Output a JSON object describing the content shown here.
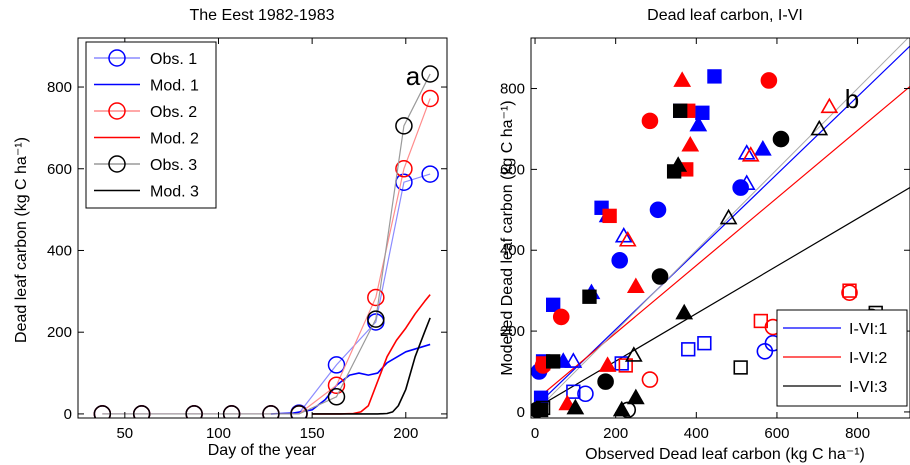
{
  "chart_data": [
    {
      "type": "line",
      "panel_letter": "a",
      "title": "The Eest 1982-1983",
      "xlabel": "Day of the year",
      "ylabel": "Dead leaf carbon (kg C ha⁻¹)",
      "xlim": [
        25,
        222
      ],
      "ylim": [
        -10,
        920
      ],
      "xticks": [
        50,
        100,
        150,
        200
      ],
      "yticks": [
        0,
        200,
        400,
        600,
        800
      ],
      "legend_position": "top-left",
      "series": [
        {
          "name": "Obs. 1",
          "kind": "obs",
          "color": "#0000ff",
          "x": [
            38,
            59,
            87,
            107,
            128,
            143,
            163,
            184,
            199,
            213
          ],
          "y": [
            0,
            0,
            0,
            0,
            0,
            2,
            120,
            225,
            567,
            587
          ]
        },
        {
          "name": "Mod. 1",
          "kind": "model",
          "color": "#0000ff",
          "x": [
            128,
            140,
            150,
            157,
            163,
            170,
            175,
            180,
            185,
            190,
            200,
            213
          ],
          "y": [
            0,
            2,
            10,
            35,
            70,
            95,
            100,
            95,
            100,
            125,
            152,
            170
          ]
        },
        {
          "name": "Obs. 2",
          "kind": "obs",
          "color": "#ff0000",
          "x": [
            38,
            59,
            87,
            107,
            128,
            143,
            163,
            184,
            199,
            213
          ],
          "y": [
            0,
            0,
            0,
            0,
            0,
            0,
            70,
            285,
            600,
            772
          ]
        },
        {
          "name": "Mod. 2",
          "kind": "model",
          "color": "#ff0000",
          "x": [
            150,
            165,
            172,
            176,
            180,
            185,
            190,
            195,
            200,
            205,
            210,
            213
          ],
          "y": [
            0,
            0,
            1,
            5,
            20,
            80,
            140,
            180,
            210,
            245,
            275,
            292
          ]
        },
        {
          "name": "Obs. 3",
          "kind": "obs",
          "color": "#000000",
          "x": [
            38,
            59,
            87,
            107,
            128,
            143,
            163,
            184,
            199,
            213
          ],
          "y": [
            0,
            0,
            0,
            0,
            0,
            0,
            42,
            232,
            705,
            832
          ]
        },
        {
          "name": "Mod. 3",
          "kind": "model",
          "color": "#000000",
          "x": [
            150,
            185,
            190,
            193,
            196,
            200,
            205,
            210,
            213
          ],
          "y": [
            0,
            0,
            1,
            5,
            20,
            60,
            140,
            200,
            235
          ]
        }
      ]
    },
    {
      "type": "scatter",
      "panel_letter": "b",
      "title": "Dead leaf carbon, I-VI",
      "xlabel": "Observed Dead leaf carbon (kg C ha⁻¹)",
      "ylabel": "Modelled Dead leaf carbon (kg C ha⁻¹)",
      "xlim": [
        -10,
        930
      ],
      "ylim": [
        -15,
        925
      ],
      "xticks": [
        0,
        200,
        400,
        600,
        800
      ],
      "yticks": [
        0,
        200,
        400,
        600,
        800
      ],
      "legend_position": "bottom-right",
      "regression_lines": [
        {
          "name": "I-VI:1",
          "color": "#0000ff",
          "x": [
            0,
            930
          ],
          "y": [
            12,
            905
          ]
        },
        {
          "name": "I-VI:2",
          "color": "#ff0000",
          "x": [
            0,
            930
          ],
          "y": [
            28,
            805
          ]
        },
        {
          "name": "I-VI:3",
          "color": "#000000",
          "x": [
            0,
            930
          ],
          "y": [
            8,
            555
          ]
        },
        {
          "name": "",
          "color": "#aaaaaa",
          "x": [
            0,
            930
          ],
          "y": [
            0,
            930
          ]
        }
      ],
      "points": [
        {
          "color": "#0000ff",
          "marker": "square",
          "filled": true,
          "x": 445,
          "y": 830
        },
        {
          "color": "#0000ff",
          "marker": "square",
          "filled": true,
          "x": 415,
          "y": 740
        },
        {
          "color": "#0000ff",
          "marker": "square",
          "filled": true,
          "x": 360,
          "y": 745
        },
        {
          "color": "#0000ff",
          "marker": "square",
          "filled": true,
          "x": 165,
          "y": 505
        },
        {
          "color": "#0000ff",
          "marker": "square",
          "filled": true,
          "x": 45,
          "y": 265
        },
        {
          "color": "#0000ff",
          "marker": "square",
          "filled": true,
          "x": 20,
          "y": 125
        },
        {
          "color": "#0000ff",
          "marker": "square",
          "filled": true,
          "x": 15,
          "y": 35
        },
        {
          "color": "#0000ff",
          "marker": "triangle",
          "filled": true,
          "x": 405,
          "y": 710
        },
        {
          "color": "#0000ff",
          "marker": "triangle",
          "filled": true,
          "x": 565,
          "y": 650
        },
        {
          "color": "#0000ff",
          "marker": "triangle",
          "filled": true,
          "x": 180,
          "y": 485
        },
        {
          "color": "#0000ff",
          "marker": "triangle",
          "filled": true,
          "x": 140,
          "y": 295
        },
        {
          "color": "#0000ff",
          "marker": "triangle",
          "filled": true,
          "x": 70,
          "y": 125
        },
        {
          "color": "#0000ff",
          "marker": "circle",
          "filled": true,
          "x": 305,
          "y": 500
        },
        {
          "color": "#0000ff",
          "marker": "circle",
          "filled": true,
          "x": 510,
          "y": 555
        },
        {
          "color": "#0000ff",
          "marker": "circle",
          "filled": true,
          "x": 210,
          "y": 375
        },
        {
          "color": "#0000ff",
          "marker": "circle",
          "filled": true,
          "x": 10,
          "y": 100
        },
        {
          "color": "#0000ff",
          "marker": "triangle",
          "filled": false,
          "x": 525,
          "y": 640
        },
        {
          "color": "#0000ff",
          "marker": "triangle",
          "filled": false,
          "x": 525,
          "y": 565
        },
        {
          "color": "#0000ff",
          "marker": "triangle",
          "filled": false,
          "x": 220,
          "y": 435
        },
        {
          "color": "#0000ff",
          "marker": "triangle",
          "filled": false,
          "x": 95,
          "y": 125
        },
        {
          "color": "#0000ff",
          "marker": "circle",
          "filled": false,
          "x": 590,
          "y": 170
        },
        {
          "color": "#0000ff",
          "marker": "circle",
          "filled": false,
          "x": 570,
          "y": 150
        },
        {
          "color": "#0000ff",
          "marker": "circle",
          "filled": false,
          "x": 125,
          "y": 45
        },
        {
          "color": "#0000ff",
          "marker": "square",
          "filled": false,
          "x": 420,
          "y": 170
        },
        {
          "color": "#0000ff",
          "marker": "square",
          "filled": false,
          "x": 380,
          "y": 155
        },
        {
          "color": "#0000ff",
          "marker": "square",
          "filled": false,
          "x": 215,
          "y": 120
        },
        {
          "color": "#0000ff",
          "marker": "square",
          "filled": false,
          "x": 95,
          "y": 50
        },
        {
          "color": "#ff0000",
          "marker": "square",
          "filled": true,
          "x": 380,
          "y": 745
        },
        {
          "color": "#ff0000",
          "marker": "square",
          "filled": true,
          "x": 375,
          "y": 600
        },
        {
          "color": "#ff0000",
          "marker": "square",
          "filled": true,
          "x": 185,
          "y": 485
        },
        {
          "color": "#ff0000",
          "marker": "square",
          "filled": true,
          "x": 20,
          "y": 120
        },
        {
          "color": "#ff0000",
          "marker": "triangle",
          "filled": true,
          "x": 365,
          "y": 820
        },
        {
          "color": "#ff0000",
          "marker": "triangle",
          "filled": true,
          "x": 385,
          "y": 660
        },
        {
          "color": "#ff0000",
          "marker": "triangle",
          "filled": true,
          "x": 250,
          "y": 310
        },
        {
          "color": "#ff0000",
          "marker": "triangle",
          "filled": true,
          "x": 180,
          "y": 115
        },
        {
          "color": "#ff0000",
          "marker": "triangle",
          "filled": true,
          "x": 80,
          "y": 20
        },
        {
          "color": "#ff0000",
          "marker": "circle",
          "filled": true,
          "x": 285,
          "y": 720
        },
        {
          "color": "#ff0000",
          "marker": "circle",
          "filled": true,
          "x": 580,
          "y": 820
        },
        {
          "color": "#ff0000",
          "marker": "circle",
          "filled": true,
          "x": 65,
          "y": 235
        },
        {
          "color": "#ff0000",
          "marker": "circle",
          "filled": true,
          "x": 20,
          "y": 115
        },
        {
          "color": "#ff0000",
          "marker": "triangle",
          "filled": false,
          "x": 730,
          "y": 755
        },
        {
          "color": "#ff0000",
          "marker": "triangle",
          "filled": false,
          "x": 535,
          "y": 635
        },
        {
          "color": "#ff0000",
          "marker": "triangle",
          "filled": false,
          "x": 230,
          "y": 425
        },
        {
          "color": "#ff0000",
          "marker": "circle",
          "filled": false,
          "x": 780,
          "y": 295
        },
        {
          "color": "#ff0000",
          "marker": "circle",
          "filled": false,
          "x": 590,
          "y": 210
        },
        {
          "color": "#ff0000",
          "marker": "circle",
          "filled": false,
          "x": 285,
          "y": 80
        },
        {
          "color": "#ff0000",
          "marker": "square",
          "filled": false,
          "x": 780,
          "y": 300
        },
        {
          "color": "#ff0000",
          "marker": "square",
          "filled": false,
          "x": 560,
          "y": 225
        },
        {
          "color": "#ff0000",
          "marker": "square",
          "filled": false,
          "x": 225,
          "y": 115
        },
        {
          "color": "#000000",
          "marker": "square",
          "filled": true,
          "x": 345,
          "y": 595
        },
        {
          "color": "#000000",
          "marker": "square",
          "filled": true,
          "x": 360,
          "y": 745
        },
        {
          "color": "#000000",
          "marker": "square",
          "filled": true,
          "x": 135,
          "y": 285
        },
        {
          "color": "#000000",
          "marker": "square",
          "filled": true,
          "x": 45,
          "y": 125
        },
        {
          "color": "#000000",
          "marker": "square",
          "filled": true,
          "x": 15,
          "y": 5
        },
        {
          "color": "#000000",
          "marker": "triangle",
          "filled": true,
          "x": 355,
          "y": 610
        },
        {
          "color": "#000000",
          "marker": "triangle",
          "filled": true,
          "x": 370,
          "y": 245
        },
        {
          "color": "#000000",
          "marker": "triangle",
          "filled": true,
          "x": 250,
          "y": 35
        },
        {
          "color": "#000000",
          "marker": "triangle",
          "filled": true,
          "x": 100,
          "y": 10
        },
        {
          "color": "#000000",
          "marker": "triangle",
          "filled": true,
          "x": 215,
          "y": 5
        },
        {
          "color": "#000000",
          "marker": "circle",
          "filled": true,
          "x": 310,
          "y": 335
        },
        {
          "color": "#000000",
          "marker": "circle",
          "filled": true,
          "x": 610,
          "y": 675
        },
        {
          "color": "#000000",
          "marker": "circle",
          "filled": true,
          "x": 175,
          "y": 75
        },
        {
          "color": "#000000",
          "marker": "circle",
          "filled": true,
          "x": 5,
          "y": 5
        },
        {
          "color": "#000000",
          "marker": "triangle",
          "filled": false,
          "x": 705,
          "y": 700
        },
        {
          "color": "#000000",
          "marker": "triangle",
          "filled": false,
          "x": 480,
          "y": 480
        },
        {
          "color": "#000000",
          "marker": "triangle",
          "filled": false,
          "x": 245,
          "y": 140
        },
        {
          "color": "#000000",
          "marker": "circle",
          "filled": false,
          "x": 835,
          "y": 235
        },
        {
          "color": "#000000",
          "marker": "circle",
          "filled": false,
          "x": 230,
          "y": 5
        },
        {
          "color": "#000000",
          "marker": "square",
          "filled": false,
          "x": 845,
          "y": 245
        },
        {
          "color": "#000000",
          "marker": "square",
          "filled": false,
          "x": 510,
          "y": 110
        },
        {
          "color": "#000000",
          "marker": "square",
          "filled": false,
          "x": 20,
          "y": 10
        }
      ]
    }
  ]
}
